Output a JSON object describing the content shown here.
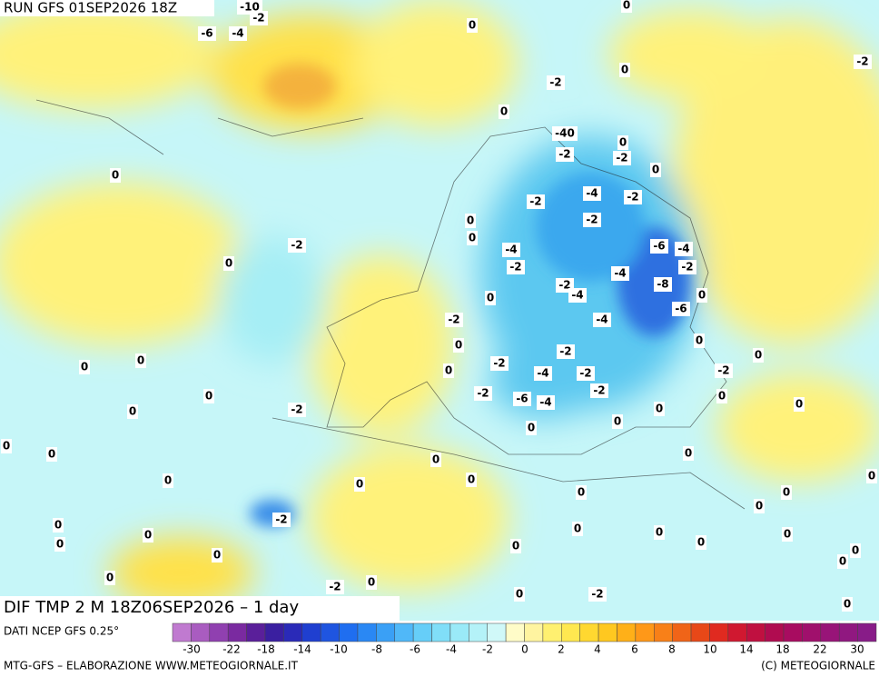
{
  "header": {
    "run": "RUN GFS 01SEP2026 18Z"
  },
  "map": {
    "title": "DIF TMP 2 M 18Z06SEP2026 – 1 day",
    "labels": [
      "-10",
      "-2",
      "-6",
      "-4",
      "0",
      "0",
      "-2",
      "0",
      "-2",
      "0",
      "-40",
      "0",
      "-2",
      "-2",
      "0",
      "0",
      "-2",
      "-4",
      "-2",
      "0",
      "-2",
      "-2",
      "0",
      "-4",
      "-6",
      "-4",
      "0",
      "-2",
      "-4",
      "-2",
      "-2",
      "-4",
      "-8",
      "0",
      "0",
      "-2",
      "-4",
      "-6",
      "0",
      "-2",
      "0",
      "0",
      "0",
      "0",
      "-2",
      "0",
      "-4",
      "-2",
      "-2",
      "0",
      "-2",
      "-6",
      "-4",
      "-2",
      "0",
      "0",
      "-2",
      "0",
      "0",
      "0",
      "0",
      "0",
      "0",
      "0",
      "0",
      "0",
      "0",
      "0",
      "0",
      "0",
      "0",
      "0",
      "-2",
      "0",
      "0",
      "0",
      "0",
      "0",
      "0",
      "0",
      "0",
      "0",
      "0",
      "0",
      "0",
      "-2",
      "0",
      "-2",
      "0",
      "0"
    ]
  },
  "colorbar": {
    "source": "DATI NCEP GFS 0.25°",
    "labels": [
      "-30",
      "-22",
      "-18",
      "-14",
      "-10",
      "-8",
      "-6",
      "-4",
      "-2",
      "0",
      "2",
      "4",
      "6",
      "8",
      "10",
      "14",
      "18",
      "22",
      "30"
    ]
  },
  "footer": {
    "left": "MTG-GFS – ELABORAZIONE WWW.METEOGIORNALE.IT",
    "right": "(C) METEOGIORNALE"
  }
}
